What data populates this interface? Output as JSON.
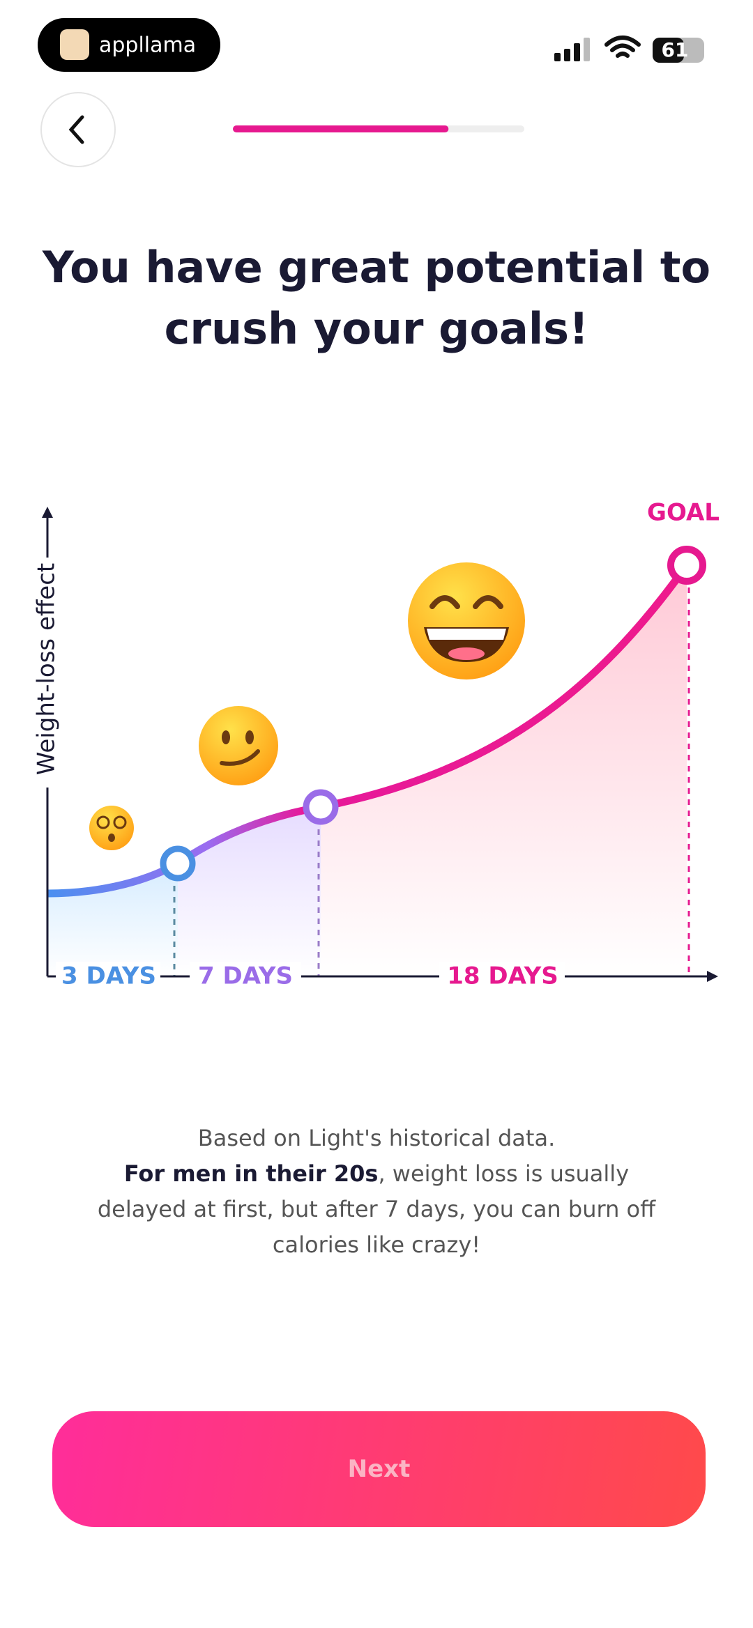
{
  "status_bar": {
    "app_name": "appllama",
    "battery": "61"
  },
  "progress": 74,
  "title": {
    "line1": "You have great potential to",
    "line2": "crush your goals!"
  },
  "chart": {
    "y_axis_label": "Weight-loss effect",
    "goal_label": "GOAL",
    "segments": [
      "3 DAYS",
      "7 DAYS",
      "18 DAYS"
    ]
  },
  "description": {
    "line1": "Based on Light's historical data.",
    "bold": "For men in their 20s",
    "rest": ", weight loss is usually delayed at first, but after 7 days, you can burn off calories like crazy!"
  },
  "button": {
    "label": "Next"
  }
}
